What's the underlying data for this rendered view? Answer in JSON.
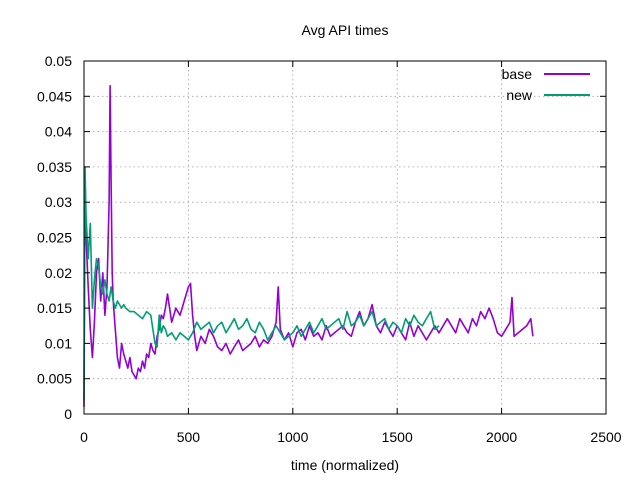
{
  "chart_data": {
    "type": "line",
    "title": "Avg API times",
    "xlabel": "time (normalized)",
    "ylabel": "",
    "xlim": [
      0,
      2500
    ],
    "ylim": [
      0,
      0.05
    ],
    "xticks": [
      0,
      500,
      1000,
      1500,
      2000,
      2500
    ],
    "yticks": [
      0,
      0.005,
      0.01,
      0.015,
      0.02,
      0.025,
      0.03,
      0.035,
      0.04,
      0.045,
      0.05
    ],
    "xtick_labels": [
      "0",
      "500",
      "1000",
      "1500",
      "2000",
      "2500"
    ],
    "ytick_labels": [
      "0",
      "0.005",
      "0.01",
      "0.015",
      "0.02",
      "0.025",
      "0.03",
      "0.035",
      "0.04",
      "0.045",
      "0.05"
    ],
    "grid": true,
    "legend": "top-right",
    "series": [
      {
        "name": "base",
        "color": "#9400d3",
        "x": [
          0,
          5,
          10,
          20,
          30,
          40,
          50,
          60,
          70,
          80,
          90,
          100,
          110,
          120,
          125,
          130,
          135,
          140,
          150,
          160,
          170,
          180,
          190,
          200,
          210,
          220,
          230,
          240,
          250,
          260,
          270,
          280,
          290,
          300,
          310,
          320,
          330,
          340,
          350,
          360,
          370,
          380,
          390,
          400,
          420,
          440,
          460,
          480,
          500,
          510,
          520,
          530,
          540,
          560,
          580,
          600,
          620,
          640,
          660,
          680,
          700,
          720,
          740,
          760,
          780,
          800,
          820,
          840,
          860,
          880,
          900,
          920,
          930,
          940,
          960,
          980,
          1000,
          1020,
          1040,
          1060,
          1080,
          1100,
          1120,
          1140,
          1160,
          1180,
          1200,
          1220,
          1240,
          1260,
          1280,
          1300,
          1320,
          1340,
          1360,
          1380,
          1400,
          1420,
          1440,
          1460,
          1480,
          1500,
          1520,
          1540,
          1560,
          1580,
          1600,
          1620,
          1640,
          1660,
          1680,
          1700,
          1720,
          1740,
          1760,
          1780,
          1800,
          1820,
          1840,
          1860,
          1880,
          1900,
          1920,
          1940,
          1960,
          1980,
          2000,
          2020,
          2040,
          2050,
          2060,
          2080,
          2100,
          2120,
          2140,
          2150
        ],
        "y": [
          0.001,
          0.033,
          0.025,
          0.018,
          0.012,
          0.008,
          0.013,
          0.02,
          0.022,
          0.016,
          0.02,
          0.014,
          0.018,
          0.03,
          0.0465,
          0.033,
          0.02,
          0.016,
          0.012,
          0.008,
          0.0065,
          0.01,
          0.0085,
          0.0075,
          0.0065,
          0.008,
          0.006,
          0.0055,
          0.005,
          0.0065,
          0.006,
          0.0075,
          0.0065,
          0.0085,
          0.008,
          0.01,
          0.009,
          0.0085,
          0.011,
          0.012,
          0.014,
          0.0135,
          0.015,
          0.017,
          0.013,
          0.015,
          0.014,
          0.016,
          0.018,
          0.0185,
          0.014,
          0.011,
          0.009,
          0.011,
          0.01,
          0.012,
          0.011,
          0.0095,
          0.009,
          0.01,
          0.0085,
          0.0095,
          0.0105,
          0.009,
          0.0095,
          0.01,
          0.011,
          0.0095,
          0.0105,
          0.01,
          0.011,
          0.013,
          0.018,
          0.012,
          0.0105,
          0.0115,
          0.0095,
          0.0115,
          0.012,
          0.0105,
          0.0125,
          0.011,
          0.0115,
          0.0105,
          0.0125,
          0.011,
          0.0115,
          0.012,
          0.0125,
          0.0115,
          0.011,
          0.013,
          0.0145,
          0.0125,
          0.0135,
          0.0155,
          0.0125,
          0.0115,
          0.013,
          0.012,
          0.011,
          0.0125,
          0.0115,
          0.0105,
          0.013,
          0.011,
          0.0125,
          0.0115,
          0.0105,
          0.0115,
          0.0125,
          0.0115,
          0.0125,
          0.0135,
          0.0125,
          0.0115,
          0.0135,
          0.0125,
          0.0115,
          0.0135,
          0.0125,
          0.0145,
          0.0135,
          0.015,
          0.0135,
          0.0115,
          0.011,
          0.012,
          0.013,
          0.0165,
          0.011,
          0.0115,
          0.012,
          0.0125,
          0.0135,
          0.011
        ]
      },
      {
        "name": "new",
        "color": "#009e73",
        "x": [
          0,
          5,
          10,
          20,
          30,
          40,
          50,
          60,
          70,
          80,
          90,
          100,
          110,
          120,
          130,
          140,
          150,
          160,
          170,
          180,
          190,
          200,
          220,
          240,
          260,
          280,
          300,
          320,
          340,
          350,
          360,
          370,
          380,
          390,
          400,
          420,
          440,
          460,
          480,
          500,
          520,
          540,
          560,
          580,
          600,
          620,
          640,
          660,
          680,
          700,
          720,
          740,
          760,
          780,
          800,
          820,
          840,
          860,
          880,
          900,
          920,
          940,
          960,
          980,
          1000,
          1020,
          1040,
          1060,
          1080,
          1100,
          1120,
          1140,
          1160,
          1180,
          1200,
          1220,
          1240,
          1260,
          1280,
          1300,
          1320,
          1340,
          1360,
          1380,
          1400,
          1420,
          1440,
          1460,
          1480,
          1500,
          1520,
          1540,
          1560,
          1580,
          1600,
          1620,
          1640,
          1660,
          1680,
          1700
        ],
        "y": [
          0.002,
          0.035,
          0.028,
          0.022,
          0.027,
          0.015,
          0.019,
          0.022,
          0.021,
          0.018,
          0.017,
          0.019,
          0.017,
          0.016,
          0.018,
          0.016,
          0.015,
          0.016,
          0.0155,
          0.015,
          0.0155,
          0.015,
          0.0145,
          0.0145,
          0.014,
          0.0135,
          0.0145,
          0.014,
          0.01,
          0.0095,
          0.014,
          0.0115,
          0.0125,
          0.012,
          0.011,
          0.0115,
          0.0105,
          0.0115,
          0.011,
          0.0105,
          0.0115,
          0.013,
          0.012,
          0.0125,
          0.013,
          0.0115,
          0.0125,
          0.013,
          0.0115,
          0.0125,
          0.0135,
          0.012,
          0.0125,
          0.0135,
          0.012,
          0.0115,
          0.013,
          0.012,
          0.0105,
          0.0115,
          0.0125,
          0.0115,
          0.0105,
          0.011,
          0.0115,
          0.0125,
          0.011,
          0.012,
          0.013,
          0.0115,
          0.0125,
          0.0135,
          0.012,
          0.0125,
          0.013,
          0.0135,
          0.012,
          0.0145,
          0.0125,
          0.013,
          0.014,
          0.0125,
          0.0135,
          0.0145,
          0.0125,
          0.013,
          0.0135,
          0.012,
          0.013,
          0.0125,
          0.0115,
          0.0135,
          0.0125,
          0.014,
          0.013,
          0.0125,
          0.0135,
          0.0145,
          0.012,
          0.0125
        ]
      }
    ]
  }
}
